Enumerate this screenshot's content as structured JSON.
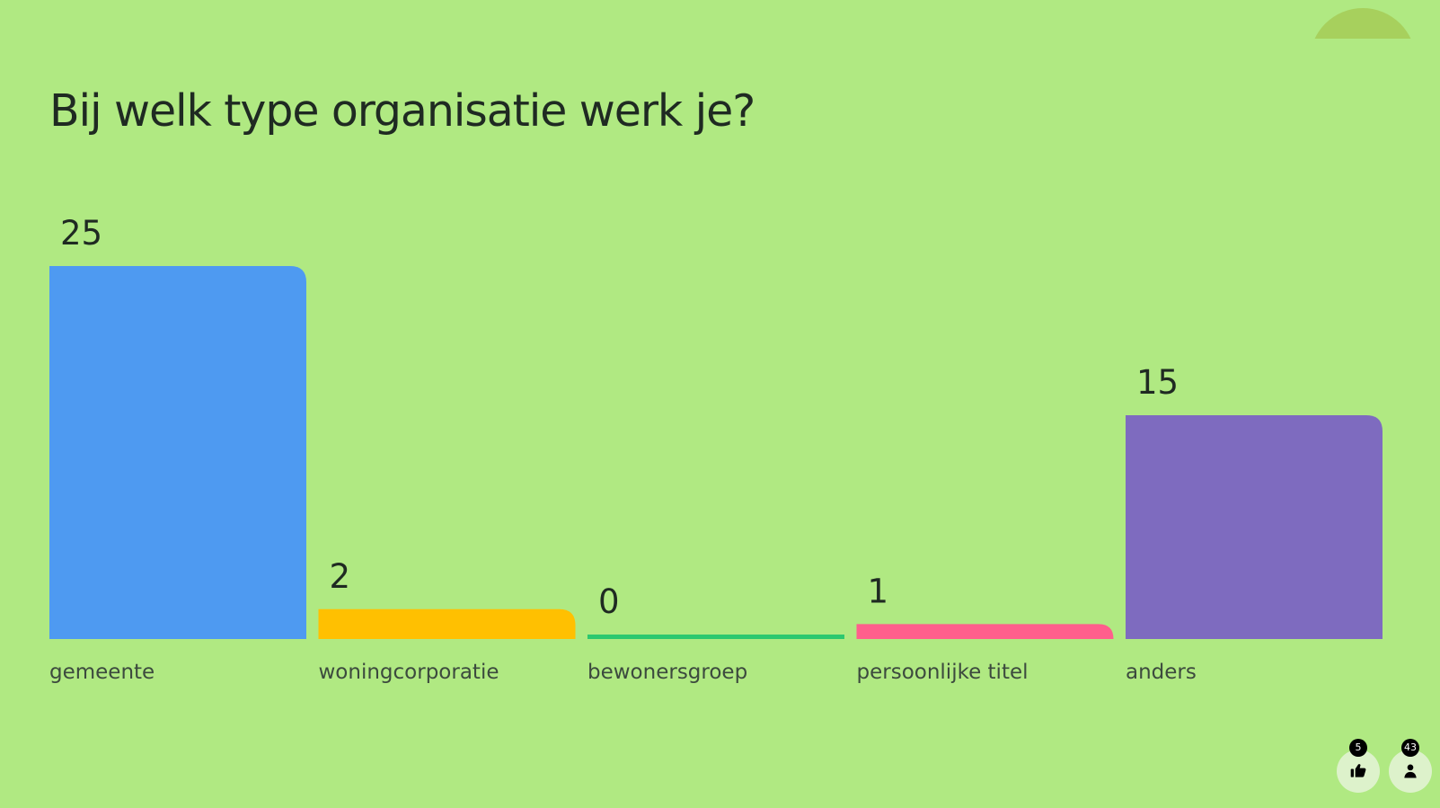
{
  "title": "Bij welk type organisatie werk je?",
  "chart_data": {
    "type": "bar",
    "title": "Bij welk type organisatie werk je?",
    "categories": [
      "gemeente",
      "woningcorporatie",
      "bewonersgroep",
      "persoonlijke titel",
      "anders"
    ],
    "values": [
      25,
      2,
      0,
      1,
      15
    ],
    "colors": [
      "#4E9AF1",
      "#FFC001",
      "#2CC86F",
      "#FF5F8C",
      "#7E6BBF"
    ],
    "xlabel": "",
    "ylabel": "",
    "ylim": [
      0,
      25
    ],
    "grid": false,
    "legend": "none"
  },
  "footer": {
    "reactions_count": "5",
    "participants_count": "43",
    "reactions_icon": "thumbs-up-icon",
    "participants_icon": "person-icon"
  }
}
